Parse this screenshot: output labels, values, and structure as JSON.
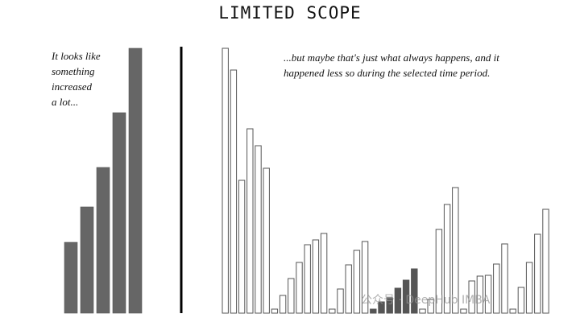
{
  "chart_data": [
    {
      "type": "bar",
      "title": "LIMITED SCOPE",
      "panel": "left",
      "annotation": "It looks like something increased a lot...",
      "values": [
        88,
        132,
        181,
        249,
        329
      ],
      "bar_color": "#666666"
    },
    {
      "type": "bar",
      "panel": "right",
      "annotation": "...but maybe that's just what always happens, and it happened less so during the selected time period.",
      "values": [
        329,
        302,
        165,
        229,
        208,
        180,
        5,
        22,
        43,
        63,
        85,
        91,
        99,
        5,
        30,
        60,
        78,
        89,
        5,
        14,
        19,
        31,
        41,
        55,
        5,
        17,
        104,
        135,
        156,
        5,
        40,
        46,
        47,
        61,
        86,
        5,
        32,
        63,
        98,
        129
      ],
      "highlight_range": [
        18,
        23
      ],
      "bar_color": "#ffffff",
      "highlight_color": "#555555"
    }
  ],
  "annotations": {
    "left_lines": [
      "It looks like",
      "something",
      "increased",
      "a lot..."
    ],
    "right_lines": [
      "...but maybe that's just what always happens, and it",
      "happened less so during the selected time period."
    ]
  },
  "watermark": "公众号 · DeepHub IMBA",
  "colors": {
    "bar_fill": "#666666",
    "bar_outline": "#555555",
    "divider": "#000000"
  }
}
